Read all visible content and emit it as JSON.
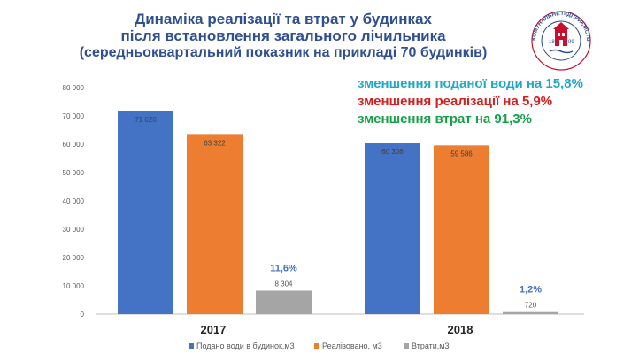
{
  "title": {
    "line1": "Динаміка реалізації та втрат у будинках",
    "line2": "після встановлення загального лічильника",
    "line3": "(середньоквартальний  показник  на прикладі 70 будинків)"
  },
  "logo": {
    "text": "КОМУНАЛЬНЕ ПІДПРИЄМСТВО ЖИТОМИРВОДОКАНАЛ",
    "year_left": "18",
    "year_right": "99",
    "icon": "water-tower-emblem-icon"
  },
  "annotations": [
    {
      "text": "зменшення  поданої води на 15,8%",
      "color": "#21a8c9"
    },
    {
      "text": "зменшення реалізації на 5,9%",
      "color": "#d02020"
    },
    {
      "text": "зменшення втрат на 91,3%",
      "color": "#17a04a"
    }
  ],
  "chart_data": {
    "type": "bar",
    "categories": [
      "2017",
      "2018"
    ],
    "series": [
      {
        "name": "Подано води в будинок,м3",
        "values": [
          71626,
          60306
        ],
        "labels": [
          "71 626",
          "60 306"
        ],
        "color": "#4472c4"
      },
      {
        "name": "Реалізовано, м3",
        "values": [
          63322,
          59586
        ],
        "labels": [
          "63 322",
          "59 586"
        ],
        "color": "#ed7d31"
      },
      {
        "name": "Втрати,м3",
        "values": [
          8304,
          720
        ],
        "labels": [
          "8 304",
          "720"
        ],
        "color": "#a5a5a5"
      }
    ],
    "loss_percent_labels": [
      "11,6%",
      "1,2%"
    ],
    "y_ticks": [
      "0",
      "10 000",
      "20 000",
      "30 000",
      "40 000",
      "50 000",
      "60 000",
      "70 000",
      "80 000"
    ],
    "ylim": [
      0,
      80000
    ],
    "grid": false,
    "legend": "bottom"
  }
}
